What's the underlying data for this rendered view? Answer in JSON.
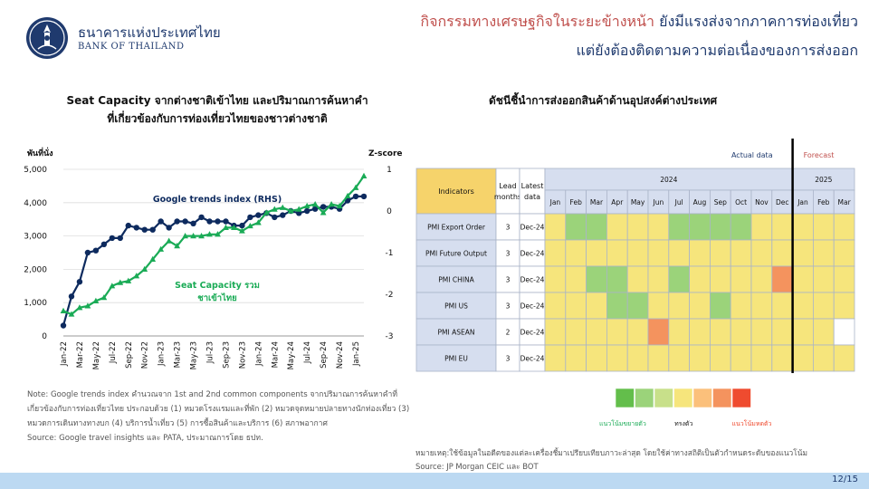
{
  "header": {
    "bank_name_th": "ธนาคารแห่งประเทศไทย",
    "bank_name_en": "BANK OF THAILAND",
    "title_line1_a": "กิจกรรมทางเศรษฐกิจในระยะข้างหน้า",
    "title_line1_b": "ยังมีแรงส่งจากภาคการท่องเที่ยว",
    "title_line2": "แต่ยังต้องติดตามความต่อเนื่องของการส่งออก"
  },
  "left_panel": {
    "title_line1": "Seat Capacity จากต่างชาติเข้าไทย และปริมาณการค้นหาคำ",
    "title_line2": "ที่เกี่ยวข้องกับการท่องเที่ยวไทยของชาวต่างชาติ",
    "note": "Note: Google trends index คำนวณจาก 1st and 2nd  common components จากปริมาณการค้นหาคำที่เกี่ยวข้องกับการท่องเที่ยวไทย ประกอบด้วย (1) หมวดโรงแรมและที่พัก (2) หมวดจุดหมายปลายทางนักท่องเที่ยว (3) หมวดการเดินทางทางบก (4) บริการน้ำเที่ยว (5) การซื้อสินค้าและบริการ (6) สภาพอากาศ",
    "source": "Source: Google travel insights และ PATA, ประมาณการโดย ธปท."
  },
  "right_panel": {
    "title": "ดัชนีชี้นำการส่งออกสินค้าด้านอุปสงค์ต่างประเทศ",
    "note": "หมายเหตุ:ใช้ข้อมูลในอดีตของแต่ละเครื่องชี้มาเปรียบเทียบภาวะล่าสุด โดยใช้ค่าทางสถิติเป็นตัวกำหนดระดับของแนวโน้ม",
    "source": "Source: JP Morgan CEIC และ BOT"
  },
  "page_number": "12/15",
  "chart_data": [
    {
      "type": "line",
      "title": "Seat Capacity จากต่างชาติเข้าไทย และปริมาณการค้นหาคำที่เกี่ยวข้องกับการท่องเที่ยวไทยของชาวต่างชาติ",
      "ylabel": "พันที่นั่ง",
      "y2label": "Z-score",
      "ylim": [
        0,
        5000
      ],
      "yticks": [
        "0",
        "1,000",
        "2,000",
        "3,000",
        "4,000",
        "5,000"
      ],
      "y2lim": [
        -3,
        1
      ],
      "y2ticks": [
        "1",
        "0",
        "-1",
        "-2",
        "-3"
      ],
      "x_tick_labels": [
        "Jan-22",
        "Mar-22",
        "May-22",
        "Jul-22",
        "Sep-22",
        "Nov-22",
        "Jan-23",
        "Mar-23",
        "May-23",
        "Jul-23",
        "Sep-23",
        "Nov-23",
        "Jan-24",
        "Mar-24",
        "May-24",
        "Jul-24",
        "Sep-24",
        "Nov-24",
        "Jan-25"
      ],
      "grid": "horizontal",
      "series": [
        {
          "name": "Google trends index (RHS)",
          "axis": "right",
          "color": "#0d2a5e",
          "values": [
            -2.75,
            -2.05,
            -1.7,
            -1.0,
            -0.95,
            -0.8,
            -0.65,
            -0.65,
            -0.35,
            -0.4,
            -0.45,
            -0.45,
            -0.25,
            -0.4,
            -0.25,
            -0.25,
            -0.3,
            -0.15,
            -0.25,
            -0.25,
            -0.25,
            -0.35,
            -0.35,
            -0.15,
            -0.1,
            -0.05,
            -0.15,
            -0.1,
            0.0,
            -0.05,
            0.0,
            0.05,
            0.1,
            0.1,
            0.05,
            0.25,
            0.35,
            0.35
          ]
        },
        {
          "name": "Seat Capacity รวมชาเข้าไทย",
          "axis": "left",
          "color": "#1aab56",
          "values": [
            750,
            650,
            850,
            900,
            1050,
            1150,
            1500,
            1600,
            1650,
            1800,
            2000,
            2300,
            2600,
            2850,
            2700,
            3000,
            3000,
            3000,
            3050,
            3050,
            3250,
            3250,
            3150,
            3300,
            3400,
            3700,
            3800,
            3850,
            3750,
            3800,
            3900,
            3950,
            3700,
            3950,
            3900,
            4200,
            4450,
            4800
          ]
        }
      ]
    },
    {
      "type": "heatmap",
      "title": "ดัชนีชี้นำการส่งออกสินค้าด้านอุปสงค์ต่างประเทศ",
      "header_indicators": "Indicators",
      "header_lead": "Lead months",
      "header_latest": "Latest data",
      "year_2024": "2024",
      "year_2025": "2025",
      "actual_label": "Actual data",
      "forecast_label": "Forecast",
      "months": [
        "Jan",
        "Feb",
        "Mar",
        "Apr",
        "May",
        "Jun",
        "Jul",
        "Aug",
        "Sep",
        "Oct",
        "Nov",
        "Dec",
        "Jan",
        "Feb",
        "Mar"
      ],
      "colors": {
        "g3": "#63be4b",
        "g2": "#9bd37a",
        "g1": "#c8e08a",
        "n": "#f6e57c",
        "o1": "#fbc07b",
        "o2": "#f4935e",
        "r3": "#ef4b2f",
        "w": "#ffffff"
      },
      "rows": [
        {
          "indicator": "PMI Export Order",
          "lead": "3",
          "latest": "Dec-24",
          "cells": [
            "n",
            "g2",
            "g2",
            "n",
            "n",
            "n",
            "g2",
            "g2",
            "g2",
            "g2",
            "n",
            "n",
            "n",
            "n",
            "n"
          ]
        },
        {
          "indicator": "PMI Future Output",
          "lead": "3",
          "latest": "Dec-24",
          "cells": [
            "n",
            "n",
            "n",
            "n",
            "n",
            "n",
            "n",
            "n",
            "n",
            "n",
            "n",
            "n",
            "n",
            "n",
            "n"
          ]
        },
        {
          "indicator": "PMI CHINA",
          "lead": "3",
          "latest": "Dec-24",
          "cells": [
            "n",
            "n",
            "g2",
            "g2",
            "n",
            "n",
            "g2",
            "n",
            "n",
            "n",
            "n",
            "o2",
            "n",
            "n",
            "n"
          ]
        },
        {
          "indicator": "PMI US",
          "lead": "3",
          "latest": "Dec-24",
          "cells": [
            "n",
            "n",
            "n",
            "g2",
            "g2",
            "n",
            "n",
            "n",
            "g2",
            "n",
            "n",
            "n",
            "n",
            "n",
            "n"
          ]
        },
        {
          "indicator": "PMI ASEAN",
          "lead": "2",
          "latest": "Dec-24",
          "cells": [
            "n",
            "n",
            "n",
            "n",
            "n",
            "o2",
            "n",
            "n",
            "n",
            "n",
            "n",
            "n",
            "n",
            "n",
            "w"
          ]
        },
        {
          "indicator": "PMI EU",
          "lead": "3",
          "latest": "Dec-24",
          "cells": [
            "n",
            "n",
            "n",
            "n",
            "n",
            "n",
            "n",
            "n",
            "n",
            "n",
            "n",
            "n",
            "n",
            "n",
            "n"
          ]
        }
      ],
      "legend": {
        "swatches": [
          "g3",
          "g2",
          "g1",
          "n",
          "o1",
          "o2",
          "r3"
        ],
        "expand_label": "แนวโน้มขยายตัว",
        "stable_label": "ทรงตัว",
        "contract_label": "แนวโน้มหดตัว"
      }
    }
  ]
}
